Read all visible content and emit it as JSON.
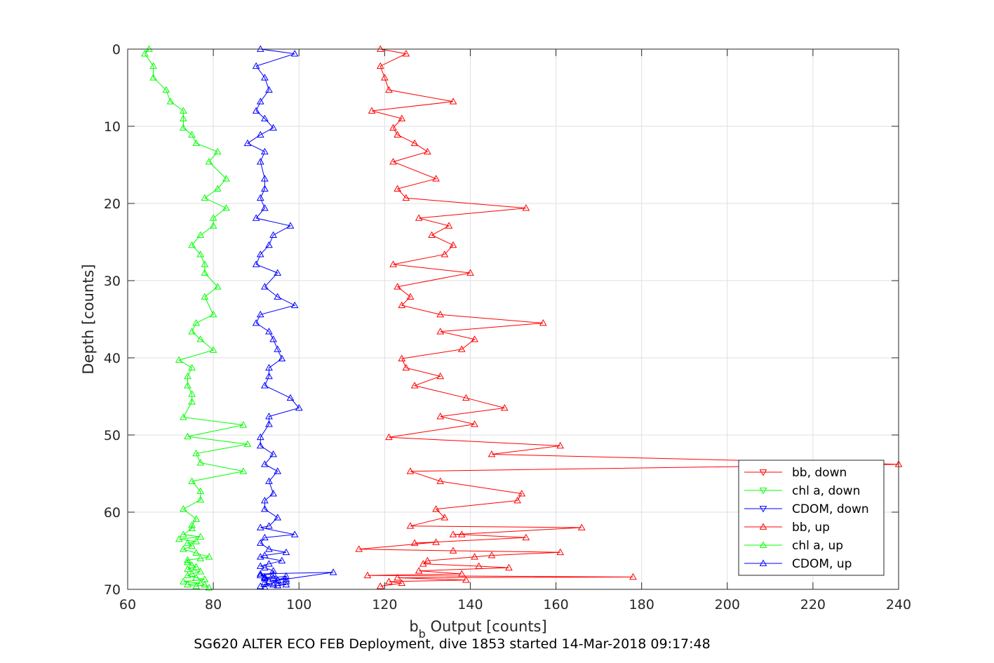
{
  "caption": "SG620 ALTER ECO FEB Deployment, dive 1853 started 14-Mar-2018 09:17:48",
  "chart_data": {
    "type": "line",
    "xlabel_main": "b",
    "xlabel_sub": "b",
    "xlabel_rest": " Output [counts]",
    "ylabel": "Depth [counts]",
    "xlim": [
      60,
      240
    ],
    "ylim": [
      0,
      70
    ],
    "y_reversed": true,
    "grid": true,
    "xticks": [
      "60",
      "80",
      "100",
      "120",
      "140",
      "160",
      "180",
      "200",
      "220",
      "240"
    ],
    "yticks": [
      "0",
      "10",
      "20",
      "30",
      "40",
      "50",
      "60",
      "70"
    ],
    "legend_position": "bottom-right",
    "series": [
      {
        "name": "bb, down",
        "color": "#ff0000",
        "marker": "triangle-down",
        "x": [],
        "y": []
      },
      {
        "name": "chl a, down",
        "color": "#00ff00",
        "marker": "triangle-down",
        "x": [],
        "y": []
      },
      {
        "name": "CDOM, down",
        "color": "#0000ff",
        "marker": "triangle-down",
        "x": [],
        "y": []
      },
      {
        "name": "bb, up",
        "color": "#ff0000",
        "marker": "triangle-up",
        "x": [
          119,
          125,
          119,
          120,
          121,
          136,
          117,
          124,
          122,
          123,
          127,
          130,
          122,
          132,
          123,
          125,
          153,
          128,
          135,
          131,
          136,
          134,
          122,
          140,
          123,
          126,
          124,
          133,
          157,
          133,
          141,
          138,
          124,
          125,
          133,
          127,
          139,
          148,
          133,
          141,
          121,
          161,
          145,
          240,
          126,
          133,
          152,
          151,
          132,
          134,
          126,
          166,
          136,
          138,
          153,
          127,
          132,
          114,
          136,
          161,
          145,
          141,
          130,
          129,
          142,
          149,
          128,
          138,
          116,
          178,
          123,
          139,
          121,
          124,
          119
        ],
        "y": [
          0,
          0.6,
          2.2,
          3.7,
          5.3,
          6.8,
          8.0,
          9.0,
          10.2,
          11.1,
          12.2,
          13.3,
          14.6,
          16.8,
          18.1,
          19.3,
          20.6,
          21.9,
          22.9,
          24.1,
          25.4,
          26.6,
          27.9,
          29.0,
          30.8,
          32.1,
          33.2,
          34.4,
          35.5,
          36.6,
          37.6,
          38.9,
          40.1,
          41.3,
          42.4,
          43.6,
          45.2,
          46.5,
          47.6,
          48.6,
          50.3,
          51.4,
          52.5,
          53.8,
          54.7,
          56.0,
          57.6,
          58.5,
          59.6,
          60.7,
          61.8,
          62.0,
          62.9,
          62.9,
          63.3,
          64.0,
          63.9,
          64.8,
          65.0,
          65.2,
          65.6,
          65.8,
          66.3,
          66.7,
          67.0,
          67.2,
          67.6,
          68.0,
          68.2,
          68.4,
          68.5,
          68.8,
          69.0,
          69.2,
          69.6
        ]
      },
      {
        "name": "chl a, up",
        "color": "#00ff00",
        "marker": "triangle-up",
        "x": [
          65,
          64,
          66,
          66,
          69,
          70,
          73,
          73,
          73,
          75,
          76,
          81,
          79,
          83,
          81,
          78,
          83,
          80,
          80,
          77,
          75,
          77,
          78,
          78,
          81,
          78,
          80,
          76,
          75,
          77,
          80,
          72,
          75,
          74,
          74,
          75,
          75,
          73,
          87,
          74,
          88,
          76,
          77,
          87,
          75,
          77,
          77,
          73,
          76,
          75,
          75,
          73,
          77,
          72,
          76,
          74,
          75,
          73,
          76,
          79,
          77,
          74,
          74,
          75,
          76,
          74,
          77,
          75,
          74,
          76,
          78,
          73,
          77,
          74,
          76,
          78,
          79
        ],
        "y": [
          0,
          0.6,
          2.2,
          3.7,
          5.3,
          6.8,
          8.0,
          9.0,
          10.2,
          11.1,
          12.2,
          13.3,
          14.6,
          16.8,
          18.1,
          19.3,
          20.6,
          21.9,
          22.9,
          24.1,
          25.4,
          26.6,
          27.9,
          29.0,
          30.8,
          32.1,
          34.4,
          35.5,
          36.6,
          37.6,
          39.0,
          40.3,
          41.3,
          42.4,
          43.6,
          44.7,
          45.7,
          47.7,
          48.7,
          50.2,
          51.2,
          52.4,
          53.6,
          54.7,
          56.0,
          57.3,
          58.4,
          59.6,
          60.9,
          61.7,
          62.1,
          62.9,
          63.2,
          63.5,
          63.8,
          64.0,
          64.4,
          64.8,
          65.3,
          65.8,
          66.0,
          66.2,
          66.5,
          66.9,
          67.1,
          67.4,
          67.7,
          68.0,
          68.2,
          68.5,
          68.7,
          69.0,
          69.2,
          69.4,
          69.6,
          69.4,
          69.8
        ]
      },
      {
        "name": "CDOM, up",
        "color": "#0000ff",
        "marker": "triangle-up",
        "x": [
          91,
          99,
          90,
          92,
          93,
          91,
          90,
          92,
          94,
          91,
          88,
          92,
          91,
          92,
          92,
          91,
          92,
          90,
          98,
          94,
          93,
          91,
          90,
          95,
          92,
          95,
          99,
          91,
          90,
          93,
          94,
          95,
          96,
          93,
          93,
          92,
          98,
          100,
          93,
          93,
          91,
          91,
          94,
          92,
          95,
          93,
          94,
          92,
          92,
          95,
          93,
          91,
          99,
          92,
          91,
          93,
          97,
          92,
          91,
          96,
          93,
          91,
          92,
          94,
          94,
          91,
          92,
          94,
          95,
          93,
          108,
          91,
          92,
          97,
          97,
          95,
          97,
          95,
          91,
          92,
          97,
          92,
          92,
          94
        ],
        "y": [
          0,
          0.6,
          2.2,
          3.7,
          5.3,
          6.8,
          8.0,
          9.0,
          10.2,
          11.1,
          12.2,
          13.3,
          14.6,
          16.8,
          18.1,
          19.3,
          20.6,
          21.9,
          22.9,
          24.1,
          25.4,
          26.6,
          27.9,
          29.0,
          30.8,
          32.1,
          33.2,
          34.4,
          35.5,
          36.6,
          37.6,
          38.9,
          40.1,
          41.3,
          42.4,
          43.6,
          45.2,
          46.5,
          47.6,
          48.6,
          50.3,
          51.4,
          52.5,
          53.8,
          54.7,
          56.0,
          57.6,
          58.5,
          59.6,
          60.7,
          61.8,
          62.0,
          62.9,
          63.3,
          64.0,
          64.8,
          65.2,
          65.6,
          65.8,
          66.3,
          66.7,
          67.0,
          67.2,
          67.6,
          68.0,
          68.2,
          68.4,
          68.5,
          68.8,
          69.0,
          67.8,
          68.0,
          68.5,
          68.7,
          69.0,
          69.2,
          69.4,
          69.5,
          69.6,
          69.7,
          68.3,
          68.6,
          69.1,
          69.4
        ]
      }
    ]
  }
}
